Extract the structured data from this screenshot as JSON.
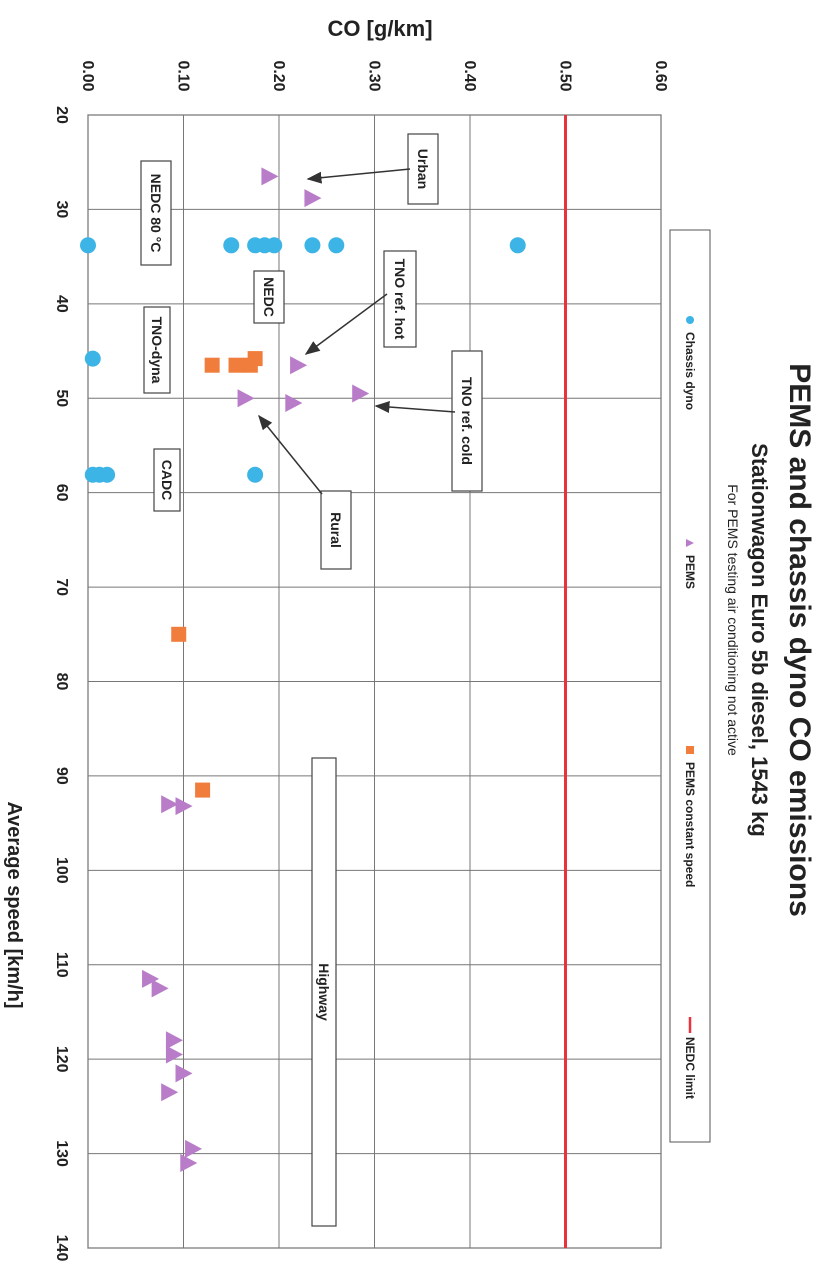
{
  "chart_data": {
    "type": "scatter",
    "orientation": "rotated-90-clockwise",
    "title": "PEMS and chassis dyno CO emissions",
    "subtitle": "Stationwagon Euro 5b diesel, 1543 kg",
    "note": "For PEMS testing air conditioning not active",
    "xlabel": "Average speed [km/h]",
    "ylabel": "CO [g/km]",
    "xlim": [
      20,
      140
    ],
    "ylim": [
      0,
      0.6
    ],
    "x_ticks": [
      "20",
      "30",
      "40",
      "50",
      "60",
      "70",
      "80",
      "90",
      "100",
      "110",
      "120",
      "130",
      "140"
    ],
    "y_ticks": [
      "0.00",
      "0.10",
      "0.20",
      "0.30",
      "0.40",
      "0.50",
      "0.60"
    ],
    "grid": true,
    "legend_position": "right",
    "series": [
      {
        "name": "Chassis dyno",
        "marker": "circle",
        "color": "#3cb4e6",
        "points": [
          [
            33.8,
            0.0
          ],
          [
            33.8,
            0.15
          ],
          [
            33.8,
            0.175
          ],
          [
            33.8,
            0.185
          ],
          [
            33.8,
            0.195
          ],
          [
            33.8,
            0.235
          ],
          [
            33.8,
            0.26
          ],
          [
            33.8,
            0.45
          ],
          [
            45.8,
            0.005
          ],
          [
            58.1,
            0.005
          ],
          [
            58.1,
            0.012
          ],
          [
            58.1,
            0.02
          ],
          [
            58.1,
            0.175
          ]
        ]
      },
      {
        "name": "PEMS",
        "marker": "triangle",
        "color": "#b87cc8",
        "points": [
          [
            26.5,
            0.19
          ],
          [
            28.8,
            0.235
          ],
          [
            46.5,
            0.22
          ],
          [
            49.5,
            0.285
          ],
          [
            50.0,
            0.165
          ],
          [
            50.5,
            0.215
          ],
          [
            93.0,
            0.085
          ],
          [
            93.2,
            0.1
          ],
          [
            111.5,
            0.065
          ],
          [
            112.5,
            0.075
          ],
          [
            118.0,
            0.09
          ],
          [
            119.5,
            0.09
          ],
          [
            121.5,
            0.1
          ],
          [
            123.5,
            0.085
          ],
          [
            129.5,
            0.11
          ],
          [
            131.0,
            0.105
          ]
        ]
      },
      {
        "name": "PEMS constant speed",
        "marker": "square",
        "color": "#f07d3c",
        "points": [
          [
            46.5,
            0.13
          ],
          [
            46.5,
            0.155
          ],
          [
            46.5,
            0.17
          ],
          [
            45.8,
            0.175
          ],
          [
            75.0,
            0.095
          ],
          [
            91.5,
            0.12
          ]
        ]
      },
      {
        "name": "NEDC limit",
        "marker": "line",
        "color": "#e8333c",
        "value": 0.5
      }
    ],
    "annotations": [
      {
        "text": "Urban",
        "kind": "arrow-box"
      },
      {
        "text": "TNO ref. hot",
        "kind": "arrow-box"
      },
      {
        "text": "TNO ref. cold",
        "kind": "arrow-box"
      },
      {
        "text": "Rural",
        "kind": "arrow-box"
      },
      {
        "text": "NEDC 80 °C",
        "kind": "box"
      },
      {
        "text": "NEDC",
        "kind": "box"
      },
      {
        "text": "TNO-dyna",
        "kind": "box"
      },
      {
        "text": "CADC",
        "kind": "box"
      },
      {
        "text": "Highway",
        "kind": "range-box",
        "x_range": [
          88,
          138
        ]
      }
    ]
  }
}
